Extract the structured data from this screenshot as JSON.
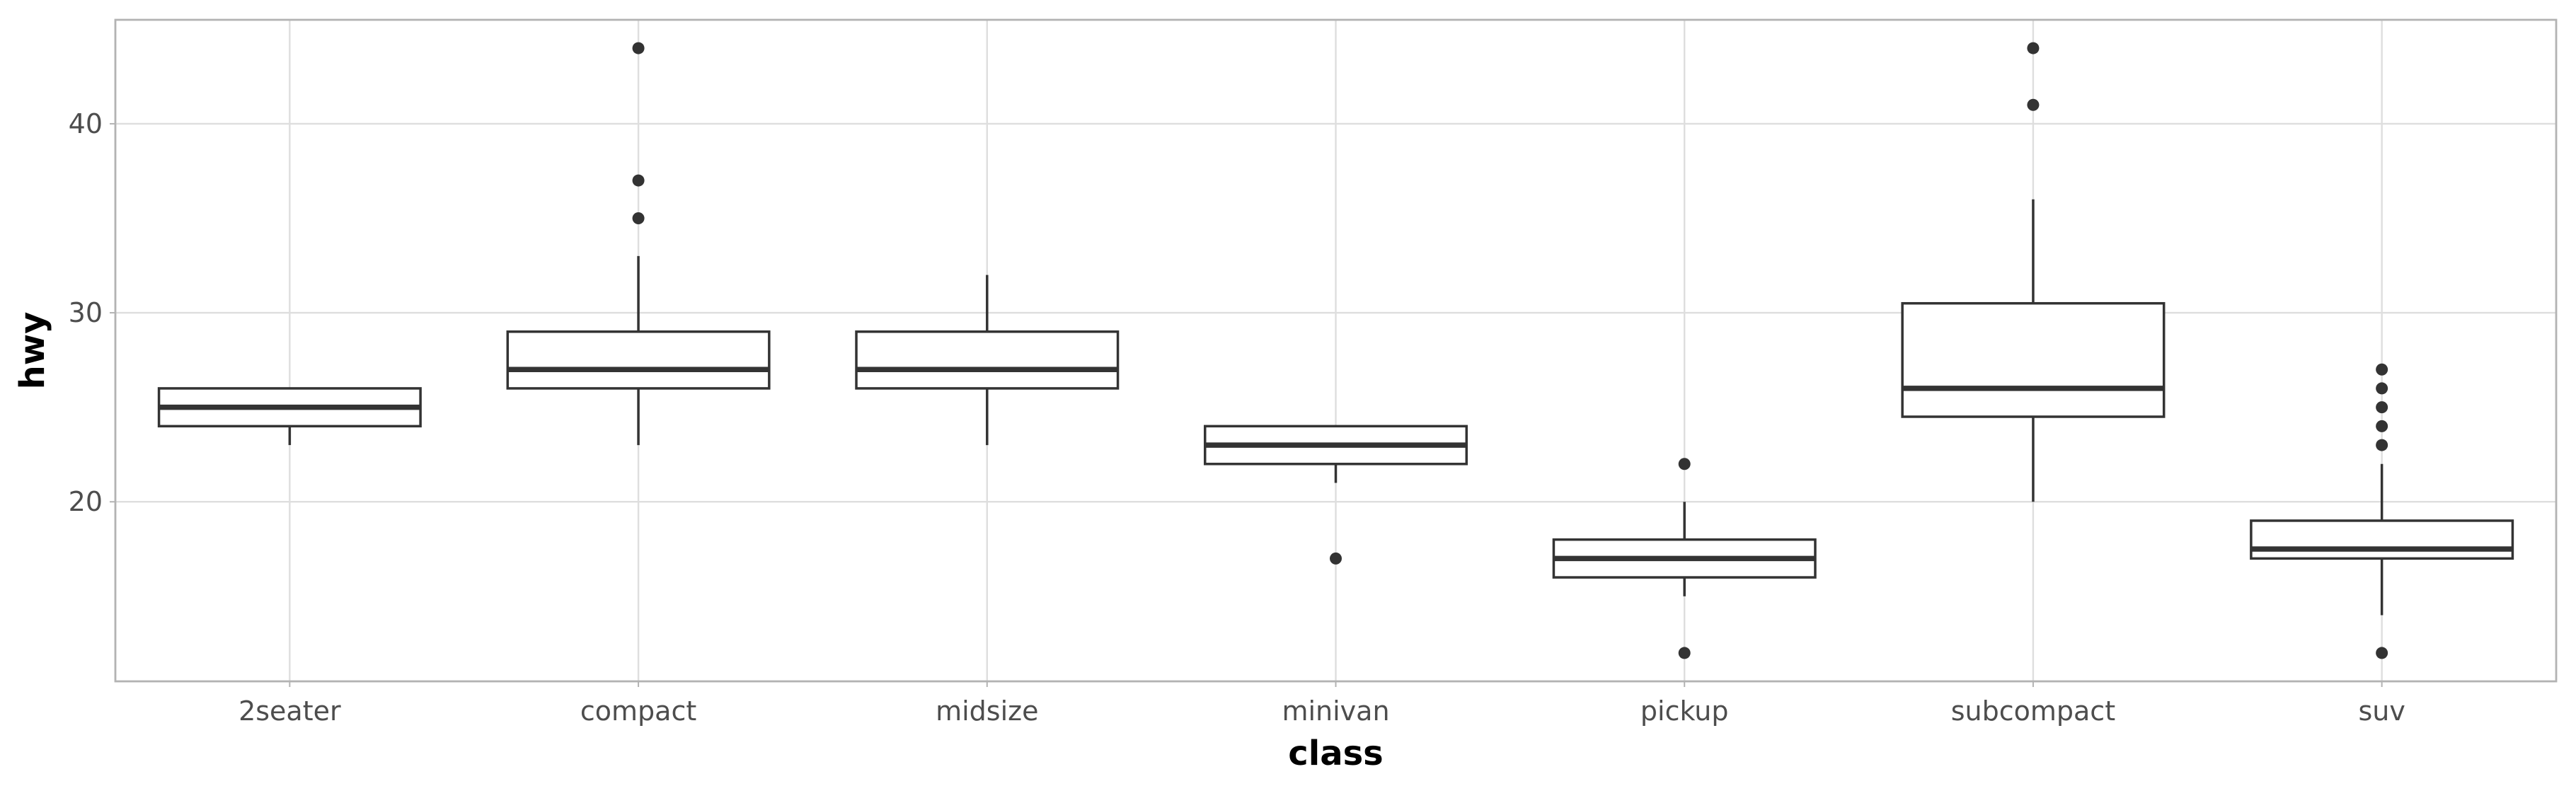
{
  "chart_data": {
    "type": "boxplot",
    "xlabel": "class",
    "ylabel": "hwy",
    "ylim": [
      10.5,
      45.5
    ],
    "yticks": [
      20,
      30,
      40
    ],
    "grid": true,
    "categories": [
      "2seater",
      "compact",
      "midsize",
      "minivan",
      "pickup",
      "subcompact",
      "suv"
    ],
    "boxes": [
      {
        "category": "2seater",
        "whisker_low": 23,
        "q1": 24,
        "median": 25,
        "q3": 26,
        "whisker_high": 26,
        "outliers": []
      },
      {
        "category": "compact",
        "whisker_low": 23,
        "q1": 26,
        "median": 27,
        "q3": 29,
        "whisker_high": 33,
        "outliers": [
          35,
          37,
          44
        ]
      },
      {
        "category": "midsize",
        "whisker_low": 23,
        "q1": 26,
        "median": 27,
        "q3": 29,
        "whisker_high": 32,
        "outliers": []
      },
      {
        "category": "minivan",
        "whisker_low": 21,
        "q1": 22,
        "median": 23,
        "q3": 24,
        "whisker_high": 24,
        "outliers": [
          17
        ]
      },
      {
        "category": "pickup",
        "whisker_low": 15,
        "q1": 16,
        "median": 17,
        "q3": 18,
        "whisker_high": 20,
        "outliers": [
          12,
          22
        ]
      },
      {
        "category": "subcompact",
        "whisker_low": 20,
        "q1": 24.5,
        "median": 26,
        "q3": 30.5,
        "whisker_high": 36,
        "outliers": [
          41,
          44
        ]
      },
      {
        "category": "suv",
        "whisker_low": 14,
        "q1": 17,
        "median": 17.5,
        "q3": 19,
        "whisker_high": 22,
        "outliers": [
          12,
          23,
          24,
          25,
          26,
          27
        ]
      }
    ],
    "colors": {
      "box": "#333333",
      "grid": "#dedede",
      "panel_border": "#b3b3b3"
    }
  }
}
